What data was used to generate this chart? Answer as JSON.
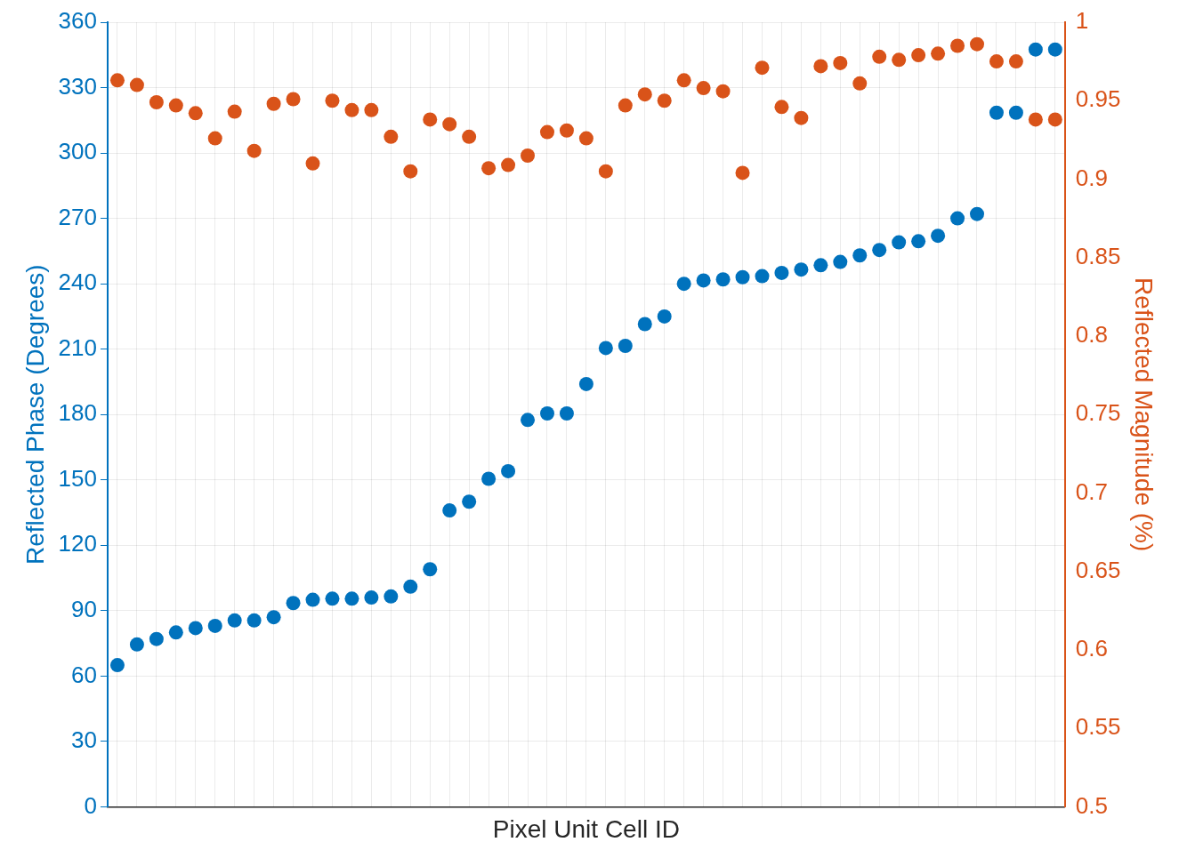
{
  "chart_data": {
    "type": "scatter",
    "xlabel": "Pixel Unit Cell ID",
    "ylabel": "Reflected Phase (Degrees)",
    "y2label": "Reflected Magnitude (%)",
    "categories": [
      null,
      null,
      null,
      null,
      null,
      null,
      null,
      null,
      null,
      null,
      null,
      null,
      null,
      null,
      null,
      null,
      null,
      null,
      null,
      null,
      null,
      null,
      null,
      null,
      null,
      null,
      null,
      null,
      null,
      null,
      null,
      null,
      null,
      null,
      null,
      null,
      null,
      null,
      null,
      null,
      null,
      null,
      null,
      null,
      null,
      null,
      null,
      null,
      null
    ],
    "series": [
      {
        "color": "#0072bd",
        "values": [
          65,
          74.5,
          77,
          80,
          82,
          83,
          85.5,
          85.5,
          87,
          93.5,
          95,
          95.5,
          95.5,
          96,
          96.5,
          101,
          109,
          136,
          140,
          150.5,
          154,
          177.5,
          180.5,
          180.5,
          194,
          210.5,
          211.5,
          221.5,
          225,
          240,
          241.5,
          242,
          243,
          243.5,
          245,
          246.5,
          248.5,
          250,
          253,
          255.5,
          259,
          259.5,
          262,
          270,
          272,
          318.5,
          318.5,
          347.5,
          347.5
        ]
      },
      {
        "color": "#d95319",
        "axis": "y2",
        "values": [
          0.963,
          0.96,
          0.949,
          0.947,
          0.942,
          0.926,
          0.943,
          0.918,
          0.948,
          0.951,
          0.91,
          0.95,
          0.944,
          0.944,
          0.927,
          0.905,
          0.938,
          0.935,
          0.927,
          0.907,
          0.909,
          0.915,
          0.93,
          0.931,
          0.926,
          0.905,
          0.947,
          0.954,
          0.95,
          0.963,
          0.958,
          0.956,
          0.904,
          0.971,
          0.946,
          0.939,
          0.972,
          0.974,
          0.961,
          0.978,
          0.976,
          0.979,
          0.98,
          0.985,
          0.986,
          0.975,
          0.975,
          0.938,
          0.938
        ]
      }
    ],
    "ylim": [
      0,
      360
    ],
    "yticks": [
      0,
      30,
      60,
      90,
      120,
      150,
      180,
      210,
      240,
      270,
      300,
      330,
      360
    ],
    "y2lim": [
      0.5,
      1
    ],
    "y2ticks": [
      0.5,
      0.55,
      0.6,
      0.65,
      0.7,
      0.75,
      0.8,
      0.85,
      0.9,
      0.95,
      1
    ],
    "grid": true,
    "marker": "circle",
    "legend": false
  }
}
